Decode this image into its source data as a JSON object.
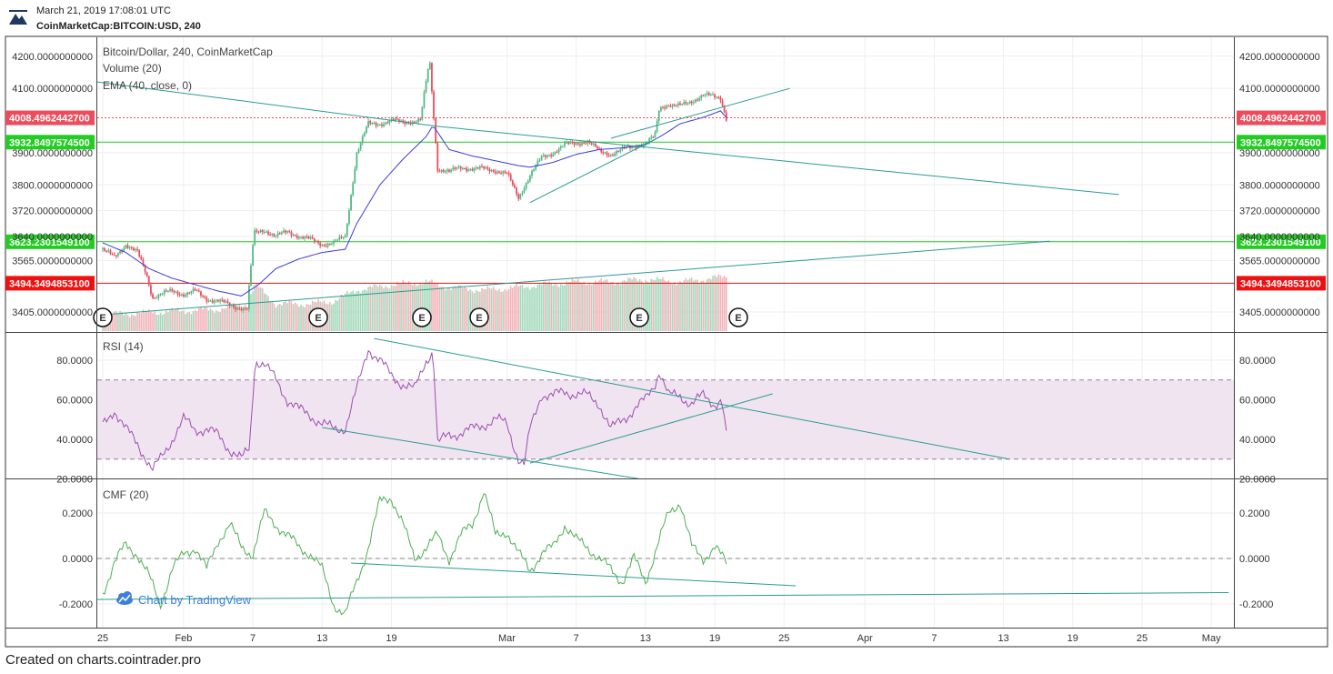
{
  "header": {
    "datetime": "March 21, 2019 17:08:01 UTC",
    "symbol": "CoinMarketCap:BITCOIN:USD, 240"
  },
  "footer": {
    "created_on": "Created on charts.cointrader.pro"
  },
  "watermark": {
    "text": "Chart by TradingView",
    "icon": "tradingview-cloud-icon"
  },
  "colors": {
    "up": "#53b987",
    "down": "#eb4d5c",
    "ema": "#3c3cd8",
    "trend": "#2a9d8f",
    "support": "#22cc22",
    "resistance": "#ee1111",
    "price_line": "#e05060",
    "rsi": "#9c4fb0",
    "rsi_band": "#f1e4f1",
    "cmf": "#4caf50"
  },
  "panes": {
    "price": {
      "title": "Bitcoin/Dollar, 240, CoinMarketCap",
      "volume_label": "Volume (20)",
      "ema_label": "EMA (40, close, 0)"
    },
    "rsi": {
      "title": "RSI (14)"
    },
    "cmf": {
      "title": "CMF (20)"
    }
  },
  "price_tags": [
    {
      "label": "4008.4962442700",
      "value": 4008.49624427,
      "color": "#eb4d5c",
      "style": "dotted"
    },
    {
      "label": "3932.8497574500",
      "value": 3932.84975745,
      "color": "#22cc22",
      "style": "solid"
    },
    {
      "label": "3623.2301549100",
      "value": 3623.23015491,
      "color": "#22cc22",
      "style": "solid"
    },
    {
      "label": "3494.3494853100",
      "value": 3494.34948531,
      "color": "#ee1111",
      "style": "solid"
    }
  ],
  "earnings_markers": {
    "label": "E",
    "x": [
      -2,
      17,
      20,
      22,
      47,
      53
    ]
  },
  "chart_data": [
    {
      "type": "candlestick",
      "title": "Bitcoin/Dollar, 240, CoinMarketCap",
      "x_unit": "days since Jan 25, 2019",
      "y_ticks": [
        {
          "label": "4200.0000000000",
          "value": 4200
        },
        {
          "label": "4100.0000000000",
          "value": 4100
        },
        {
          "label": "3900.0000000000",
          "value": 3900
        },
        {
          "label": "3800.0000000000",
          "value": 3800
        },
        {
          "label": "3720.0000000000",
          "value": 3720
        },
        {
          "label": "3640.0000000000",
          "value": 3640
        },
        {
          "label": "3565.0000000000",
          "value": 3565
        },
        {
          "label": "3405.0000000000",
          "value": 3405
        }
      ],
      "x_ticks": [
        {
          "label": "25",
          "day": 0
        },
        {
          "label": "Feb",
          "day": 7
        },
        {
          "label": "7",
          "day": 13
        },
        {
          "label": "13",
          "day": 19
        },
        {
          "label": "19",
          "day": 25
        },
        {
          "label": "Mar",
          "day": 35
        },
        {
          "label": "7",
          "day": 41
        },
        {
          "label": "13",
          "day": 47
        },
        {
          "label": "19",
          "day": 53
        },
        {
          "label": "25",
          "day": 59
        },
        {
          "label": "Apr",
          "day": 66
        },
        {
          "label": "7",
          "day": 72
        },
        {
          "label": "13",
          "day": 78
        },
        {
          "label": "19",
          "day": 84
        },
        {
          "label": "25",
          "day": 90
        },
        {
          "label": "May",
          "day": 96
        }
      ],
      "close_anchors": [
        [
          0,
          3600
        ],
        [
          1,
          3575
        ],
        [
          2,
          3615
        ],
        [
          3,
          3590
        ],
        [
          3.8,
          3520
        ],
        [
          4.3,
          3450
        ],
        [
          5,
          3460
        ],
        [
          6,
          3470
        ],
        [
          7,
          3460
        ],
        [
          8,
          3470
        ],
        [
          9,
          3445
        ],
        [
          10,
          3440
        ],
        [
          11.5,
          3420
        ],
        [
          12.5,
          3415
        ],
        [
          13.1,
          3650
        ],
        [
          14,
          3660
        ],
        [
          15,
          3640
        ],
        [
          16,
          3655
        ],
        [
          17,
          3640
        ],
        [
          18,
          3630
        ],
        [
          19,
          3615
        ],
        [
          20,
          3620
        ],
        [
          21,
          3640
        ],
        [
          22,
          3900
        ],
        [
          23,
          3990
        ],
        [
          24,
          3990
        ],
        [
          25,
          4000
        ],
        [
          26,
          3995
        ],
        [
          27.5,
          4000
        ],
        [
          28.3,
          4190
        ],
        [
          29,
          3850
        ],
        [
          30,
          3840
        ],
        [
          31,
          3855
        ],
        [
          32,
          3850
        ],
        [
          33,
          3850
        ],
        [
          34,
          3845
        ],
        [
          35,
          3835
        ],
        [
          36,
          3760
        ],
        [
          37,
          3830
        ],
        [
          38,
          3885
        ],
        [
          39,
          3900
        ],
        [
          40,
          3925
        ],
        [
          41,
          3930
        ],
        [
          42,
          3935
        ],
        [
          43,
          3905
        ],
        [
          44,
          3895
        ],
        [
          45,
          3910
        ],
        [
          46,
          3920
        ],
        [
          47,
          3930
        ],
        [
          47.8,
          3950
        ],
        [
          48.2,
          4040
        ],
        [
          49,
          4050
        ],
        [
          50,
          4045
        ],
        [
          51,
          4060
        ],
        [
          52,
          4080
        ],
        [
          53.5,
          4070
        ],
        [
          54,
          4008
        ]
      ],
      "ema_anchors": [
        [
          0,
          3620
        ],
        [
          2,
          3590
        ],
        [
          4,
          3540
        ],
        [
          6,
          3510
        ],
        [
          8,
          3490
        ],
        [
          10,
          3470
        ],
        [
          12,
          3455
        ],
        [
          13.5,
          3490
        ],
        [
          15,
          3540
        ],
        [
          17,
          3570
        ],
        [
          19,
          3590
        ],
        [
          21,
          3600
        ],
        [
          22,
          3680
        ],
        [
          24,
          3800
        ],
        [
          26,
          3880
        ],
        [
          28,
          3950
        ],
        [
          28.6,
          3985
        ],
        [
          30,
          3910
        ],
        [
          32,
          3890
        ],
        [
          34,
          3875
        ],
        [
          36,
          3860
        ],
        [
          37,
          3855
        ],
        [
          39,
          3870
        ],
        [
          41,
          3895
        ],
        [
          43,
          3910
        ],
        [
          45,
          3915
        ],
        [
          47,
          3925
        ],
        [
          48.5,
          3955
        ],
        [
          50,
          3990
        ],
        [
          52,
          4010
        ],
        [
          53.5,
          4030
        ],
        [
          54,
          4010
        ]
      ],
      "volume_anchors": [
        [
          0,
          0.3
        ],
        [
          5,
          0.35
        ],
        [
          10,
          0.4
        ],
        [
          12.5,
          0.5
        ],
        [
          13.2,
          0.85
        ],
        [
          15,
          0.5
        ],
        [
          18,
          0.5
        ],
        [
          20,
          0.55
        ],
        [
          22,
          0.75
        ],
        [
          25,
          0.85
        ],
        [
          28,
          0.9
        ],
        [
          30,
          0.8
        ],
        [
          33,
          0.75
        ],
        [
          36,
          0.8
        ],
        [
          38,
          0.85
        ],
        [
          41,
          0.9
        ],
        [
          44,
          0.9
        ],
        [
          47,
          0.95
        ],
        [
          50,
          0.9
        ],
        [
          54,
          1.0
        ]
      ],
      "trendlines": [
        [
          [
            -0.5,
            4120
          ],
          [
            29,
            3982
          ]
        ],
        [
          [
            29,
            3982
          ],
          [
            88,
            3770
          ]
        ],
        [
          [
            44,
            3945
          ],
          [
            59.5,
            4100
          ]
        ],
        [
          [
            37,
            3745
          ],
          [
            48,
            3945
          ]
        ],
        [
          [
            -0.5,
            3395
          ],
          [
            82,
            3625
          ]
        ]
      ]
    },
    {
      "type": "line",
      "title": "RSI (14)",
      "y_ticks": [
        {
          "label": "80.0000",
          "value": 80
        },
        {
          "label": "60.0000",
          "value": 60
        },
        {
          "label": "40.0000",
          "value": 40
        },
        {
          "label": "20.0000",
          "value": 20
        }
      ],
      "band": [
        30,
        70
      ],
      "anchors": [
        [
          0,
          47
        ],
        [
          1,
          55
        ],
        [
          2,
          45
        ],
        [
          3,
          38
        ],
        [
          3.8,
          30
        ],
        [
          4.3,
          24
        ],
        [
          5,
          30
        ],
        [
          6,
          40
        ],
        [
          7,
          50
        ],
        [
          8,
          45
        ],
        [
          9,
          45
        ],
        [
          10,
          42
        ],
        [
          11,
          35
        ],
        [
          12,
          30
        ],
        [
          12.7,
          35
        ],
        [
          13.2,
          80
        ],
        [
          14,
          78
        ],
        [
          15,
          70
        ],
        [
          16,
          60
        ],
        [
          17,
          55
        ],
        [
          18,
          52
        ],
        [
          19,
          48
        ],
        [
          20,
          45
        ],
        [
          21,
          46
        ],
        [
          22,
          65
        ],
        [
          23,
          86
        ],
        [
          24,
          80
        ],
        [
          25,
          72
        ],
        [
          26,
          68
        ],
        [
          27,
          65
        ],
        [
          28,
          80
        ],
        [
          28.6,
          85
        ],
        [
          29,
          38
        ],
        [
          30,
          42
        ],
        [
          32,
          45
        ],
        [
          34,
          50
        ],
        [
          35,
          48
        ],
        [
          36,
          30
        ],
        [
          36.5,
          27
        ],
        [
          37,
          45
        ],
        [
          38,
          63
        ],
        [
          39,
          62
        ],
        [
          40,
          64
        ],
        [
          42,
          62
        ],
        [
          43,
          58
        ],
        [
          44,
          45
        ],
        [
          45,
          50
        ],
        [
          46,
          55
        ],
        [
          47,
          60
        ],
        [
          47.8,
          68
        ],
        [
          48.2,
          75
        ],
        [
          49,
          62
        ],
        [
          50,
          62
        ],
        [
          51,
          58
        ],
        [
          52,
          62
        ],
        [
          53,
          58
        ],
        [
          53.6,
          60
        ],
        [
          54,
          42
        ]
      ],
      "trendlines": [
        [
          [
            23.5,
            91
          ],
          [
            78.5,
            30
          ]
        ],
        [
          [
            19,
            46
          ],
          [
            46.5,
            20
          ]
        ],
        [
          [
            37,
            28
          ],
          [
            58,
            63
          ]
        ]
      ]
    },
    {
      "type": "line",
      "title": "CMF (20)",
      "y_ticks": [
        {
          "label": "0.2000",
          "value": 0.2
        },
        {
          "label": "0.0000",
          "value": 0
        },
        {
          "label": "-0.2000",
          "value": -0.2
        }
      ],
      "anchors": [
        [
          0,
          -0.15
        ],
        [
          1,
          -0.02
        ],
        [
          2,
          0.06
        ],
        [
          3,
          0.02
        ],
        [
          4,
          -0.08
        ],
        [
          5,
          -0.2
        ],
        [
          6,
          -0.05
        ],
        [
          7,
          0.02
        ],
        [
          8,
          0.05
        ],
        [
          9,
          -0.05
        ],
        [
          10,
          0.08
        ],
        [
          11,
          0.15
        ],
        [
          12,
          0.05
        ],
        [
          13,
          0.02
        ],
        [
          14,
          0.2
        ],
        [
          15,
          0.15
        ],
        [
          16,
          0.1
        ],
        [
          17,
          0.05
        ],
        [
          18,
          0.02
        ],
        [
          19,
          -0.05
        ],
        [
          20,
          -0.2
        ],
        [
          21,
          -0.25
        ],
        [
          22,
          -0.1
        ],
        [
          23,
          0.05
        ],
        [
          24,
          0.25
        ],
        [
          25,
          0.27
        ],
        [
          26,
          0.15
        ],
        [
          27,
          0.0
        ],
        [
          28,
          0.05
        ],
        [
          29,
          0.1
        ],
        [
          30,
          0.0
        ],
        [
          31,
          0.1
        ],
        [
          32,
          0.15
        ],
        [
          33,
          0.3
        ],
        [
          34,
          0.1
        ],
        [
          35,
          0.12
        ],
        [
          36,
          0.02
        ],
        [
          37,
          -0.05
        ],
        [
          38,
          0.02
        ],
        [
          39,
          0.05
        ],
        [
          40,
          0.15
        ],
        [
          41,
          0.08
        ],
        [
          42,
          0.05
        ],
        [
          43,
          0.0
        ],
        [
          44,
          -0.05
        ],
        [
          45,
          -0.1
        ],
        [
          46,
          0.0
        ],
        [
          47,
          -0.1
        ],
        [
          48,
          0.05
        ],
        [
          49,
          0.2
        ],
        [
          50,
          0.25
        ],
        [
          51,
          0.05
        ],
        [
          52,
          0.0
        ],
        [
          53,
          0.05
        ],
        [
          54,
          -0.02
        ]
      ],
      "trendlines": [
        [
          [
            21.5,
            -0.02
          ],
          [
            60,
            -0.12
          ]
        ],
        [
          [
            -0.5,
            -0.18
          ],
          [
            97.5,
            -0.15
          ]
        ]
      ]
    }
  ]
}
